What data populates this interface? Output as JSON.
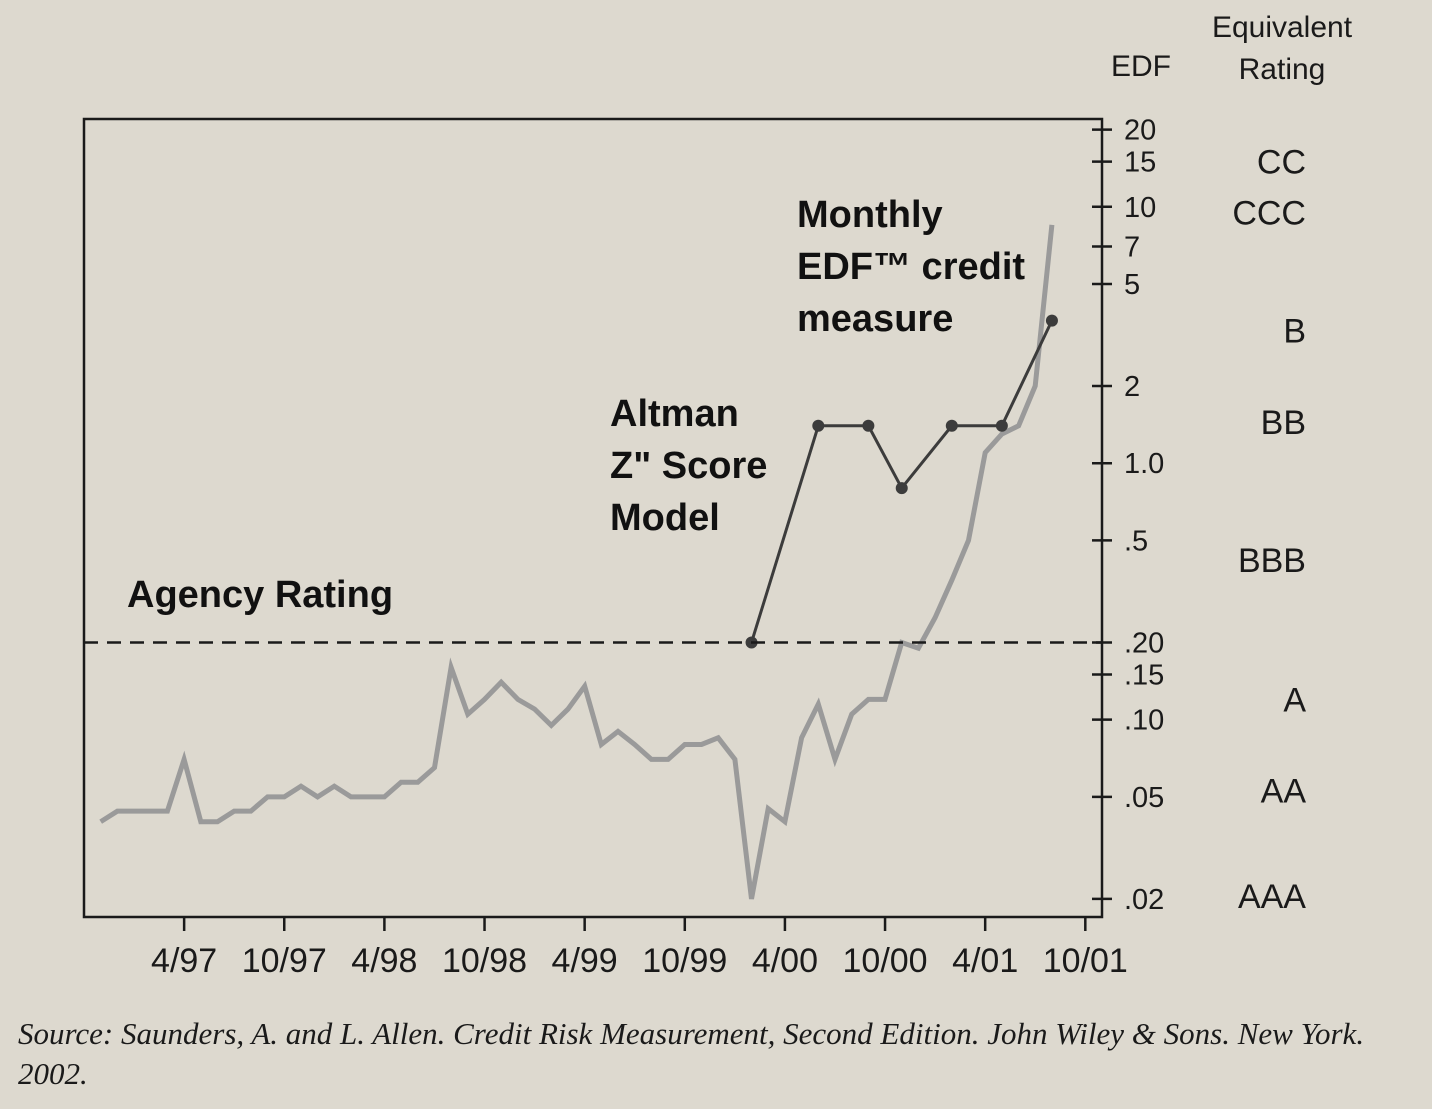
{
  "chart_data": {
    "type": "line",
    "title": "",
    "y_axis_title": "EDF",
    "y_scale": "log",
    "y_ticks": [
      {
        "value": 20,
        "label": "20"
      },
      {
        "value": 15,
        "label": "15"
      },
      {
        "value": 10,
        "label": "10"
      },
      {
        "value": 7,
        "label": "7"
      },
      {
        "value": 5,
        "label": "5"
      },
      {
        "value": 2,
        "label": "2"
      },
      {
        "value": 1.0,
        "label": "1.0"
      },
      {
        "value": 0.5,
        "label": ".5"
      },
      {
        "value": 0.2,
        "label": ".20"
      },
      {
        "value": 0.15,
        "label": ".15"
      },
      {
        "value": 0.1,
        "label": ".10"
      },
      {
        "value": 0.05,
        "label": ".05"
      },
      {
        "value": 0.02,
        "label": ".02"
      }
    ],
    "ylim": [
      0.017,
      22
    ],
    "x_ticks": [
      {
        "month": 4,
        "year": 1997,
        "label": "4/97"
      },
      {
        "month": 10,
        "year": 1997,
        "label": "10/97"
      },
      {
        "month": 4,
        "year": 1998,
        "label": "4/98"
      },
      {
        "month": 10,
        "year": 1998,
        "label": "10/98"
      },
      {
        "month": 4,
        "year": 1999,
        "label": "4/99"
      },
      {
        "month": 10,
        "year": 1999,
        "label": "10/99"
      },
      {
        "month": 4,
        "year": 2000,
        "label": "4/00"
      },
      {
        "month": 10,
        "year": 2000,
        "label": "10/00"
      },
      {
        "month": 4,
        "year": 2001,
        "label": "4/01"
      },
      {
        "month": 10,
        "year": 2001,
        "label": "10/01"
      }
    ],
    "xlim": [
      "1996-10",
      "2001-11"
    ],
    "equivalent_rating_header": [
      "Equivalent",
      "Rating"
    ],
    "equivalent_ratings": [
      {
        "label": "CC",
        "edf": 15
      },
      {
        "label": "CCC",
        "edf": 9.5
      },
      {
        "label": "B",
        "edf": 3.3
      },
      {
        "label": "BB",
        "edf": 1.45
      },
      {
        "label": "BBB",
        "edf": 0.42
      },
      {
        "label": "A",
        "edf": 0.12
      },
      {
        "label": "AA",
        "edf": 0.053
      },
      {
        "label": "AAA",
        "edf": 0.0205
      }
    ],
    "series": [
      {
        "name": "Monthly EDF™ credit measure",
        "color": "#9a9a9a",
        "points": [
          [
            "1996-11",
            0.04
          ],
          [
            "1996-12",
            0.044
          ],
          [
            "1997-01",
            0.044
          ],
          [
            "1997-02",
            0.044
          ],
          [
            "1997-03",
            0.044
          ],
          [
            "1997-04",
            0.07
          ],
          [
            "1997-05",
            0.04
          ],
          [
            "1997-06",
            0.04
          ],
          [
            "1997-07",
            0.044
          ],
          [
            "1997-08",
            0.044
          ],
          [
            "1997-09",
            0.05
          ],
          [
            "1997-10",
            0.05
          ],
          [
            "1997-11",
            0.055
          ],
          [
            "1997-12",
            0.05
          ],
          [
            "1998-01",
            0.055
          ],
          [
            "1998-02",
            0.05
          ],
          [
            "1998-03",
            0.05
          ],
          [
            "1998-04",
            0.05
          ],
          [
            "1998-05",
            0.057
          ],
          [
            "1998-06",
            0.057
          ],
          [
            "1998-07",
            0.065
          ],
          [
            "1998-08",
            0.16
          ],
          [
            "1998-09",
            0.105
          ],
          [
            "1998-10",
            0.12
          ],
          [
            "1998-11",
            0.14
          ],
          [
            "1998-12",
            0.12
          ],
          [
            "1999-01",
            0.11
          ],
          [
            "1999-02",
            0.095
          ],
          [
            "1999-03",
            0.11
          ],
          [
            "1999-04",
            0.135
          ],
          [
            "1999-05",
            0.08
          ],
          [
            "1999-06",
            0.09
          ],
          [
            "1999-07",
            0.08
          ],
          [
            "1999-08",
            0.07
          ],
          [
            "1999-09",
            0.07
          ],
          [
            "1999-10",
            0.08
          ],
          [
            "1999-11",
            0.08
          ],
          [
            "1999-12",
            0.085
          ],
          [
            "2000-01",
            0.07
          ],
          [
            "2000-02",
            0.02
          ],
          [
            "2000-03",
            0.045
          ],
          [
            "2000-04",
            0.04
          ],
          [
            "2000-05",
            0.085
          ],
          [
            "2000-06",
            0.115
          ],
          [
            "2000-07",
            0.07
          ],
          [
            "2000-08",
            0.105
          ],
          [
            "2000-09",
            0.12
          ],
          [
            "2000-10",
            0.12
          ],
          [
            "2000-11",
            0.2
          ],
          [
            "2000-12",
            0.19
          ],
          [
            "2001-01",
            0.25
          ],
          [
            "2001-02",
            0.35
          ],
          [
            "2001-03",
            0.5
          ],
          [
            "2001-04",
            1.1
          ],
          [
            "2001-05",
            1.3
          ],
          [
            "2001-06",
            1.4
          ],
          [
            "2001-07",
            2.0
          ],
          [
            "2001-08",
            8.5
          ]
        ]
      },
      {
        "name": "Altman Z\" Score Model",
        "color": "#3c3c3c",
        "points": [
          [
            "2000-02",
            0.2
          ],
          [
            "2000-06",
            1.4
          ],
          [
            "2000-09",
            1.4
          ],
          [
            "2000-11",
            0.8
          ],
          [
            "2001-02",
            1.4
          ],
          [
            "2001-05",
            1.4
          ],
          [
            "2001-08",
            3.6
          ]
        ]
      },
      {
        "name": "Agency Rating",
        "style": "dashed",
        "color": "#1a1a1a",
        "value": 0.2
      }
    ],
    "annotations": {
      "edf": [
        "Monthly",
        "EDF™ credit",
        "measure"
      ],
      "altman": [
        "Altman",
        "Z\" Score",
        "Model"
      ],
      "agency": "Agency Rating"
    }
  },
  "source_note": "Source: Saunders, A. and L. Allen. Credit Risk Measurement, Second Edition. John Wiley & Sons. New York. 2002."
}
